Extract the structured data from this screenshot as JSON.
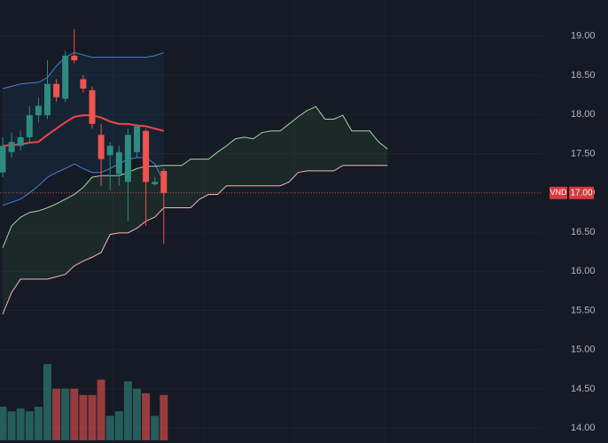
{
  "chart_data": {
    "type": "candlestick",
    "ylim": [
      13.81,
      19.46
    ],
    "yticks": [
      {
        "value": 14,
        "label": "14.00"
      },
      {
        "value": 14.5,
        "label": "14.50"
      },
      {
        "value": 15,
        "label": "15.00"
      },
      {
        "value": 15.5,
        "label": "15.50"
      },
      {
        "value": 16,
        "label": "16.00"
      },
      {
        "value": 16.5,
        "label": "16.50"
      },
      {
        "value": 17,
        "label": "17.00"
      },
      {
        "value": 17.5,
        "label": "17.50"
      },
      {
        "value": 18,
        "label": "18.00"
      },
      {
        "value": 18.5,
        "label": "18.50"
      },
      {
        "value": 19,
        "label": "19.00"
      }
    ],
    "grid": true,
    "up_color": "#2e8b7f",
    "down_color": "#ef5350",
    "open": [
      17.26,
      17.52,
      17.6,
      17.71,
      17.99,
      17.99,
      18.39,
      18.2,
      18.75,
      18.45,
      18.31,
      17.74,
      17.48,
      17.24,
      17.14,
      17.52,
      17.79,
      17.11,
      17.28,
      null,
      null,
      null,
      null,
      null,
      null,
      null,
      null,
      null,
      null,
      null,
      null,
      null,
      null,
      null,
      null,
      null,
      null,
      null,
      null,
      null,
      null,
      null,
      null,
      null
    ],
    "high": [
      17.71,
      17.77,
      17.79,
      18.11,
      18.22,
      18.69,
      18.45,
      18.81,
      19.09,
      18.5,
      18.36,
      17.88,
      17.65,
      17.6,
      17.82,
      17.88,
      17.82,
      17.2,
      17.31,
      null,
      null,
      null,
      null,
      null,
      null,
      null,
      null,
      null,
      null,
      null,
      null,
      null,
      null,
      null,
      null,
      null,
      null,
      null,
      null,
      null,
      null,
      null,
      null,
      null
    ],
    "low": [
      17.2,
      17.45,
      17.54,
      17.65,
      17.9,
      17.94,
      18.16,
      18.16,
      18.65,
      18.28,
      17.82,
      17.09,
      17.03,
      17.09,
      16.64,
      17.45,
      16.58,
      17.09,
      16.35,
      null,
      null,
      null,
      null,
      null,
      null,
      null,
      null,
      null,
      null,
      null,
      null,
      null,
      null,
      null,
      null,
      null,
      null,
      null,
      null,
      null,
      null,
      null,
      null,
      null
    ],
    "close": [
      17.6,
      17.65,
      17.71,
      17.99,
      18.11,
      18.39,
      18.22,
      18.75,
      18.69,
      18.33,
      17.88,
      17.43,
      17.6,
      17.52,
      17.74,
      17.85,
      17.14,
      17.14,
      17.0,
      null,
      null,
      null,
      null,
      null,
      null,
      null,
      null,
      null,
      null,
      null,
      null,
      null,
      null,
      null,
      null,
      null,
      null,
      null,
      null,
      null,
      null,
      null,
      null,
      null
    ],
    "volume": [
      37,
      32,
      35,
      32,
      37,
      84,
      57,
      57,
      57,
      50,
      50,
      67,
      27,
      32,
      65,
      57,
      52,
      27,
      50,
      null,
      null,
      null,
      null,
      null,
      null,
      null,
      null,
      null,
      null,
      null,
      null,
      null,
      null,
      null,
      null,
      null,
      null,
      null,
      null,
      null,
      null,
      null,
      null,
      null
    ],
    "series": [
      {
        "color": "#4a7fd4",
        "values": [
          18.33,
          18.36,
          18.39,
          18.4,
          18.41,
          18.47,
          18.62,
          18.73,
          18.79,
          18.76,
          18.73,
          18.73,
          18.73,
          18.73,
          18.73,
          18.73,
          18.73,
          18.75,
          18.79,
          null,
          null,
          null,
          null,
          null,
          null,
          null,
          null,
          null,
          null,
          null,
          null,
          null,
          null,
          null,
          null,
          null,
          null,
          null,
          null,
          null,
          null,
          null,
          null,
          null
        ]
      },
      {
        "color": "#f0454a",
        "values": [
          17.6,
          17.61,
          17.62,
          17.64,
          17.65,
          17.74,
          17.82,
          17.9,
          17.97,
          17.99,
          17.99,
          17.96,
          17.91,
          17.88,
          17.88,
          17.86,
          17.85,
          17.82,
          17.79,
          null,
          null,
          null,
          null,
          null,
          null,
          null,
          null,
          null,
          null,
          null,
          null,
          null,
          null,
          null,
          null,
          null,
          null,
          null,
          null,
          null,
          null,
          null,
          null,
          null
        ]
      },
      {
        "color": "#4a7fd4",
        "values": [
          16.84,
          16.88,
          16.92,
          17.0,
          17.09,
          17.2,
          17.26,
          17.31,
          17.37,
          17.31,
          17.26,
          17.26,
          17.31,
          17.37,
          17.43,
          17.45,
          17.45,
          17.37,
          17.14,
          null,
          null,
          null,
          null,
          null,
          null,
          null,
          null,
          null,
          null,
          null,
          null,
          null,
          null,
          null,
          null,
          null,
          null,
          null,
          null,
          null,
          null,
          null,
          null,
          null
        ]
      },
      {
        "color": "#a5d6a7",
        "values": [
          16.3,
          16.58,
          16.69,
          16.75,
          16.77,
          16.81,
          16.86,
          16.92,
          16.98,
          17.07,
          17.2,
          17.22,
          17.22,
          17.22,
          17.26,
          17.31,
          17.34,
          17.34,
          17.35,
          17.35,
          17.35,
          17.43,
          17.43,
          17.43,
          17.52,
          17.6,
          17.69,
          17.71,
          17.69,
          17.77,
          17.79,
          17.79,
          17.88,
          17.97,
          18.05,
          18.1,
          17.94,
          17.94,
          17.99,
          17.79,
          17.79,
          17.79,
          17.65,
          17.56
        ]
      },
      {
        "color": "#f4b6b6",
        "values": [
          15.45,
          15.73,
          15.9,
          15.9,
          15.9,
          15.9,
          15.93,
          15.96,
          16.07,
          16.13,
          16.18,
          16.24,
          16.47,
          16.49,
          16.49,
          16.55,
          16.64,
          16.69,
          16.81,
          16.81,
          16.81,
          16.81,
          16.92,
          16.98,
          16.98,
          17.09,
          17.09,
          17.09,
          17.09,
          17.09,
          17.09,
          17.09,
          17.14,
          17.26,
          17.28,
          17.28,
          17.28,
          17.28,
          17.35,
          17.35,
          17.35,
          17.35,
          17.35,
          17.35
        ]
      }
    ],
    "currency": "VND",
    "last_price": {
      "value": 17,
      "label": "17.00"
    }
  }
}
